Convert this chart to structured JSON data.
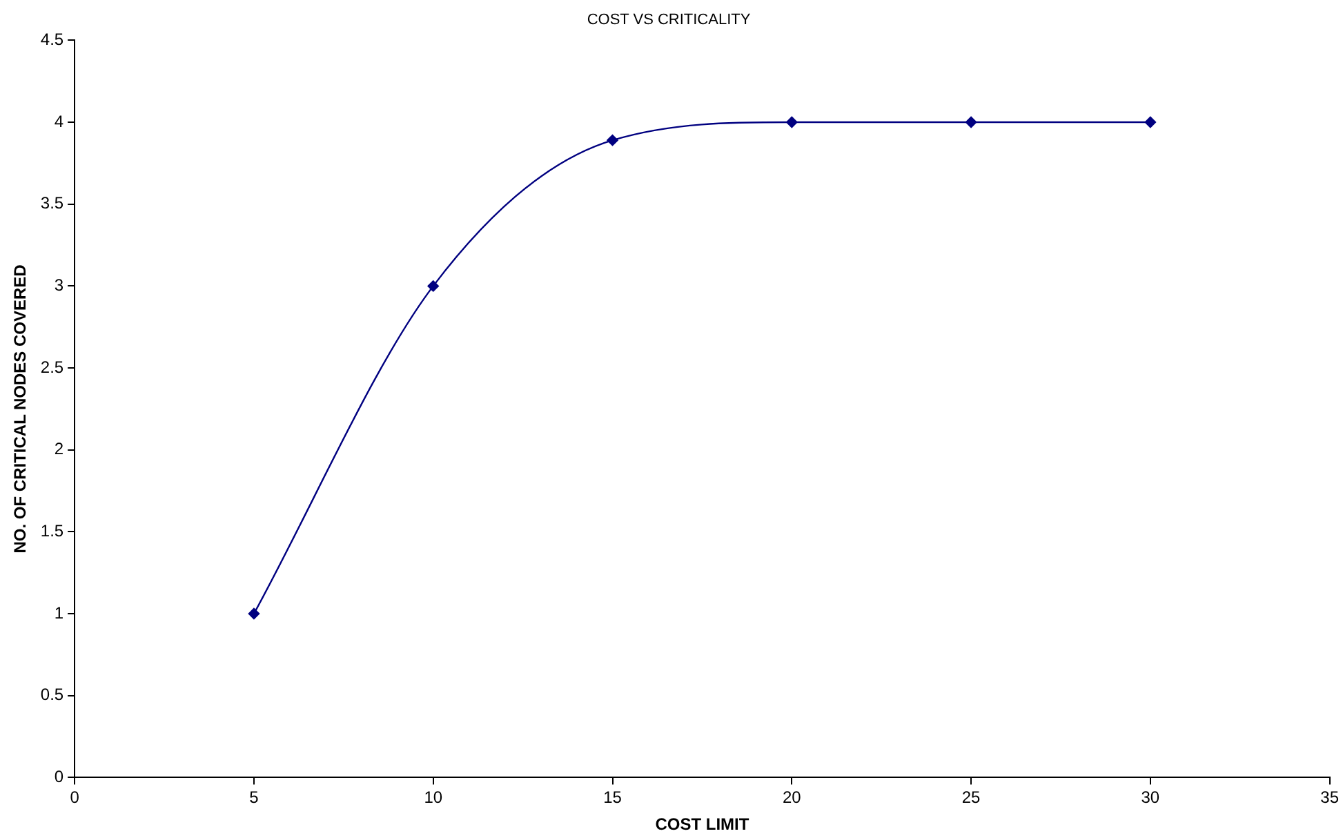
{
  "chart_data": {
    "type": "line",
    "title": "COST VS CRITICALITY",
    "xlabel": "COST LIMIT",
    "ylabel": "NO. OF CRITICAL NODES COVERED",
    "x": [
      5,
      10,
      15,
      20,
      25,
      30
    ],
    "series": [
      {
        "color": "#000080",
        "values": [
          1,
          3,
          3.89,
          4,
          4,
          4
        ]
      }
    ],
    "xlim": [
      0,
      35
    ],
    "xticks": [
      0,
      5,
      10,
      15,
      20,
      25,
      30,
      35
    ],
    "ylim": [
      0,
      4.5
    ],
    "yticks": [
      0,
      0.5,
      1,
      1.5,
      2,
      2.5,
      3,
      3.5,
      4,
      4.5
    ],
    "grid": false,
    "legend": false,
    "marker": "diamond",
    "line_style": "solid"
  }
}
